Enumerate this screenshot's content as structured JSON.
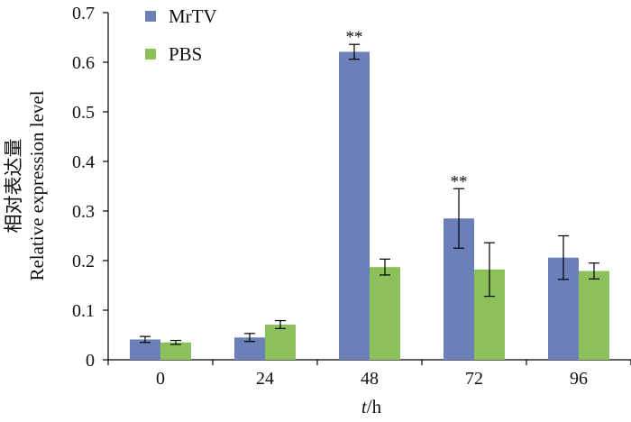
{
  "chart_data": {
    "type": "bar",
    "categories": [
      "0",
      "24",
      "48",
      "72",
      "96"
    ],
    "series": [
      {
        "name": "MrTV",
        "color": "#6b80b8",
        "values": [
          0.041,
          0.045,
          0.621,
          0.285,
          0.206
        ],
        "errors": [
          0.006,
          0.008,
          0.015,
          0.06,
          0.044
        ],
        "significance": [
          "",
          "",
          "**",
          "**",
          ""
        ]
      },
      {
        "name": "PBS",
        "color": "#8cc05a",
        "values": [
          0.035,
          0.071,
          0.187,
          0.182,
          0.179
        ],
        "errors": [
          0.004,
          0.008,
          0.016,
          0.054,
          0.016
        ],
        "significance": [
          "",
          "",
          "",
          "",
          ""
        ]
      }
    ],
    "y_ticks": [
      "0",
      "0.1",
      "0.2",
      "0.3",
      "0.4",
      "0.5",
      "0.6",
      "0.7"
    ],
    "ylim": [
      0,
      0.7
    ],
    "xlabel_italic": "t",
    "xlabel_rest": "/h",
    "ylabel_cn": "相对表达量",
    "ylabel_en": "Relative expression level",
    "legend_position": "top-left",
    "grid": false
  }
}
